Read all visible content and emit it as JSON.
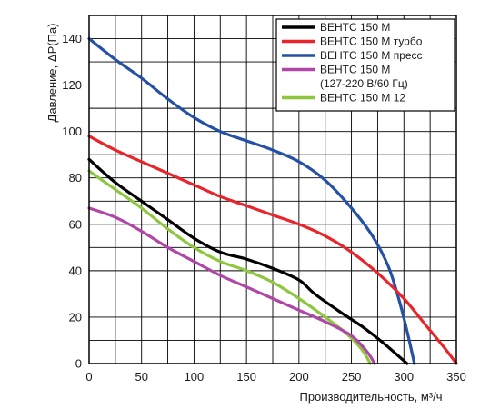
{
  "chart_data": {
    "type": "line",
    "xlabel": "Производительность, м³/ч",
    "ylabel": "Давление, ΔP(Па)",
    "xlim": [
      0,
      350
    ],
    "ylim": [
      0,
      150
    ],
    "x_ticks": [
      0,
      50,
      100,
      150,
      200,
      250,
      300,
      350
    ],
    "y_ticks": [
      0,
      20,
      40,
      60,
      80,
      100,
      120,
      140
    ],
    "grid": true,
    "legend_position": "top-right",
    "series": [
      {
        "name": "ВЕНТС 150 М",
        "color": "#000000",
        "points": [
          [
            0,
            88
          ],
          [
            25,
            78
          ],
          [
            50,
            70
          ],
          [
            75,
            62
          ],
          [
            100,
            54
          ],
          [
            125,
            48
          ],
          [
            150,
            45
          ],
          [
            175,
            41
          ],
          [
            200,
            36
          ],
          [
            215,
            30
          ],
          [
            240,
            22
          ],
          [
            260,
            16
          ],
          [
            280,
            9
          ],
          [
            303,
            0
          ]
        ]
      },
      {
        "name": "ВЕНТС 150 М турбо",
        "color": "#e8252a",
        "points": [
          [
            0,
            98
          ],
          [
            25,
            92
          ],
          [
            50,
            87
          ],
          [
            75,
            82
          ],
          [
            100,
            77
          ],
          [
            125,
            72
          ],
          [
            150,
            68
          ],
          [
            175,
            64
          ],
          [
            200,
            60
          ],
          [
            225,
            55
          ],
          [
            250,
            48
          ],
          [
            275,
            39
          ],
          [
            300,
            28
          ],
          [
            320,
            17
          ],
          [
            340,
            6
          ],
          [
            350,
            0
          ]
        ]
      },
      {
        "name": "ВЕНТС 150 М пресс",
        "color": "#2450a6",
        "points": [
          [
            0,
            140
          ],
          [
            25,
            131
          ],
          [
            50,
            123
          ],
          [
            75,
            114
          ],
          [
            100,
            106
          ],
          [
            125,
            100
          ],
          [
            150,
            96
          ],
          [
            175,
            92
          ],
          [
            200,
            87
          ],
          [
            225,
            79
          ],
          [
            250,
            67
          ],
          [
            270,
            55
          ],
          [
            285,
            42
          ],
          [
            295,
            28
          ],
          [
            303,
            14
          ],
          [
            310,
            0
          ]
        ]
      },
      {
        "name": "ВЕНТС 150 М\n(127-220 В/60 Гц)",
        "color": "#b046a8",
        "points": [
          [
            0,
            67
          ],
          [
            25,
            63
          ],
          [
            50,
            57
          ],
          [
            75,
            50
          ],
          [
            100,
            44
          ],
          [
            125,
            38
          ],
          [
            150,
            33
          ],
          [
            175,
            28
          ],
          [
            200,
            23
          ],
          [
            225,
            18
          ],
          [
            250,
            12
          ],
          [
            265,
            5
          ],
          [
            272,
            0
          ]
        ]
      },
      {
        "name": "ВЕНТС 150 М 12",
        "color": "#8dc63f",
        "points": [
          [
            0,
            83
          ],
          [
            25,
            75
          ],
          [
            50,
            67
          ],
          [
            75,
            58
          ],
          [
            100,
            50
          ],
          [
            125,
            44
          ],
          [
            150,
            40
          ],
          [
            175,
            35
          ],
          [
            200,
            28
          ],
          [
            225,
            20
          ],
          [
            245,
            13
          ],
          [
            260,
            6
          ],
          [
            268,
            0
          ]
        ]
      }
    ]
  }
}
